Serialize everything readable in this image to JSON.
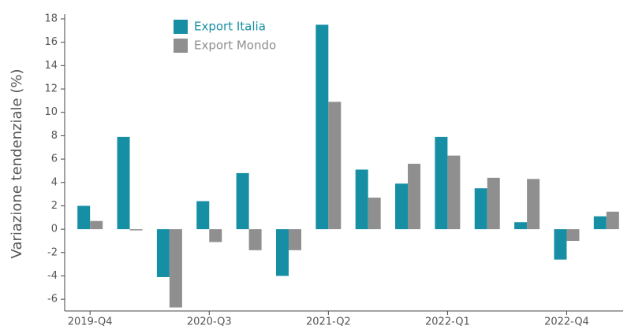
{
  "chart_data": {
    "type": "bar",
    "y_label": "Variazione tendenziale (%)",
    "categories": [
      "2019-Q4",
      null,
      null,
      "2020-Q3",
      null,
      null,
      "2021-Q2",
      null,
      null,
      "2022-Q1",
      null,
      null,
      "2022-Q4",
      null
    ],
    "series": [
      {
        "name": "Export Italia",
        "color": "#168fa5",
        "values": [
          2.0,
          7.9,
          -4.1,
          2.4,
          4.8,
          -4.0,
          17.5,
          5.1,
          3.9,
          7.9,
          3.5,
          0.6,
          -2.6,
          1.1
        ]
      },
      {
        "name": "Export Mondo",
        "color": "#8f8f8f",
        "values": [
          0.7,
          -0.1,
          -6.7,
          -1.1,
          -1.8,
          -1.8,
          10.9,
          2.7,
          5.6,
          6.3,
          4.4,
          4.3,
          -1.0,
          1.5
        ]
      }
    ],
    "ylim": [
      -7,
      18
    ],
    "yticks": [
      -6,
      -4,
      -2,
      0,
      2,
      4,
      6,
      8,
      10,
      12,
      14,
      16,
      18
    ],
    "grid": false,
    "legend": "upper left"
  }
}
